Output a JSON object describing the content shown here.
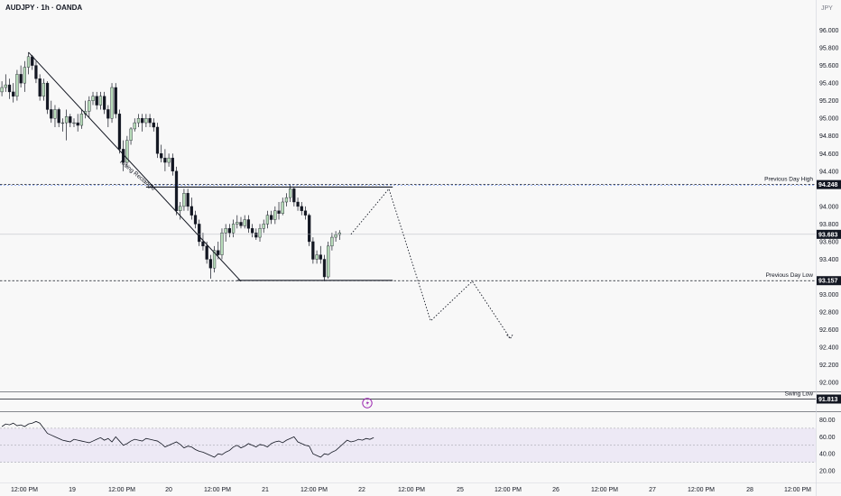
{
  "header": {
    "symbol": "AUDJPY · 1h · OANDA",
    "currency": "JPY"
  },
  "colors": {
    "up": "#ffffff",
    "down": "#131722",
    "wick": "#131722",
    "pattern_up": "#b7dbb9",
    "rsi_line": "#131722",
    "rsi_band": "#ede9f5",
    "rsi_low": "#f7b8b8",
    "grid": "#e0e3eb",
    "tag_bg": "#131722",
    "lightning": "#9c27b0"
  },
  "chart_data": [
    {
      "type": "candlestick",
      "y_ticks": [
        "96.000",
        "95.800",
        "95.600",
        "95.400",
        "95.200",
        "95.000",
        "94.800",
        "94.600",
        "94.400",
        "94.000",
        "93.800",
        "93.600",
        "93.400",
        "93.000",
        "92.800",
        "92.600",
        "92.400",
        "92.200",
        "92.000"
      ],
      "ylim": [
        91.9,
        96.2
      ],
      "x_ticks": [
        "12:00 PM",
        "19",
        "12:00 PM",
        "20",
        "12:00 PM",
        "21",
        "12:00 PM",
        "22",
        "12:00 PM",
        "25",
        "12:00 PM",
        "26",
        "12:00 PM",
        "27",
        "12:00 PM",
        "28",
        "12:00 PM"
      ],
      "bars_visible": 99,
      "bar_slots": 215,
      "candles": [
        [
          95.3,
          95.42,
          95.25,
          95.35
        ],
        [
          95.35,
          95.5,
          95.3,
          95.38
        ],
        [
          95.38,
          95.45,
          95.22,
          95.3
        ],
        [
          95.3,
          95.4,
          95.18,
          95.25
        ],
        [
          95.25,
          95.55,
          95.2,
          95.5
        ],
        [
          95.5,
          95.6,
          95.35,
          95.4
        ],
        [
          95.4,
          95.65,
          95.3,
          95.58
        ],
        [
          95.58,
          95.75,
          95.5,
          95.7
        ],
        [
          95.7,
          95.72,
          95.55,
          95.6
        ],
        [
          95.6,
          95.65,
          95.4,
          95.45
        ],
        [
          95.45,
          95.5,
          95.2,
          95.25
        ],
        [
          95.25,
          95.45,
          95.2,
          95.4
        ],
        [
          95.4,
          95.42,
          95.05,
          95.1
        ],
        [
          95.1,
          95.2,
          94.95,
          95.0
        ],
        [
          95.0,
          95.15,
          94.9,
          95.1
        ],
        [
          95.1,
          95.12,
          94.9,
          94.95
        ],
        [
          94.95,
          95.0,
          94.85,
          94.95
        ],
        [
          94.95,
          95.1,
          94.75,
          95.02
        ],
        [
          95.02,
          95.05,
          94.9,
          94.95
        ],
        [
          94.95,
          95.0,
          94.9,
          94.95
        ],
        [
          94.95,
          95.05,
          94.85,
          94.92
        ],
        [
          94.92,
          95.1,
          94.88,
          95.05
        ],
        [
          95.05,
          95.2,
          95.0,
          95.08
        ],
        [
          95.08,
          95.25,
          95.0,
          95.2
        ],
        [
          95.2,
          95.3,
          95.15,
          95.25
        ],
        [
          95.25,
          95.3,
          95.1,
          95.15
        ],
        [
          95.15,
          95.3,
          95.1,
          95.25
        ],
        [
          95.25,
          95.3,
          95.05,
          95.1
        ],
        [
          95.1,
          95.15,
          94.9,
          95.0
        ],
        [
          95.0,
          95.4,
          94.95,
          95.35
        ],
        [
          95.35,
          95.4,
          95.0,
          95.05
        ],
        [
          95.05,
          95.1,
          94.6,
          94.65
        ],
        [
          94.65,
          94.75,
          94.4,
          94.5
        ],
        [
          94.5,
          94.8,
          94.45,
          94.75
        ],
        [
          94.75,
          94.9,
          94.7,
          94.88
        ],
        [
          94.88,
          95.0,
          94.85,
          94.95
        ],
        [
          94.95,
          95.05,
          94.9,
          95.0
        ],
        [
          95.0,
          95.05,
          94.85,
          94.95
        ],
        [
          94.95,
          95.05,
          94.9,
          95.0
        ],
        [
          95.0,
          95.05,
          94.9,
          94.95
        ],
        [
          94.95,
          95.0,
          94.85,
          94.9
        ],
        [
          94.9,
          94.95,
          94.55,
          94.6
        ],
        [
          94.6,
          94.7,
          94.5,
          94.55
        ],
        [
          94.55,
          94.65,
          94.4,
          94.5
        ],
        [
          94.5,
          94.6,
          94.45,
          94.55
        ],
        [
          94.55,
          94.6,
          94.35,
          94.4
        ],
        [
          94.4,
          94.45,
          93.9,
          93.95
        ],
        [
          93.95,
          94.05,
          93.85,
          94.0
        ],
        [
          94.0,
          94.2,
          93.95,
          94.15
        ],
        [
          94.15,
          94.2,
          93.95,
          94.0
        ],
        [
          94.0,
          94.1,
          93.85,
          93.9
        ],
        [
          93.9,
          93.95,
          93.75,
          93.8
        ],
        [
          93.8,
          93.85,
          93.55,
          93.6
        ],
        [
          93.6,
          93.7,
          93.5,
          93.55
        ],
        [
          93.55,
          93.6,
          93.35,
          93.4
        ],
        [
          93.4,
          93.45,
          93.18,
          93.3
        ],
        [
          93.3,
          93.55,
          93.25,
          93.5
        ],
        [
          93.5,
          93.6,
          93.4,
          93.45
        ],
        [
          93.45,
          93.75,
          93.4,
          93.7
        ],
        [
          93.7,
          93.8,
          93.6,
          93.75
        ],
        [
          93.75,
          93.8,
          93.65,
          93.7
        ],
        [
          93.7,
          93.85,
          93.65,
          93.8
        ],
        [
          93.8,
          93.9,
          93.75,
          93.82
        ],
        [
          93.82,
          93.88,
          93.75,
          93.78
        ],
        [
          93.78,
          93.9,
          93.75,
          93.85
        ],
        [
          93.85,
          93.9,
          93.7,
          93.75
        ],
        [
          93.75,
          93.8,
          93.65,
          93.7
        ],
        [
          93.7,
          93.75,
          93.62,
          93.65
        ],
        [
          93.65,
          93.8,
          93.6,
          93.75
        ],
        [
          93.75,
          93.85,
          93.7,
          93.8
        ],
        [
          93.8,
          93.95,
          93.75,
          93.9
        ],
        [
          93.9,
          93.95,
          93.8,
          93.85
        ],
        [
          93.85,
          94.0,
          93.8,
          93.95
        ],
        [
          93.95,
          94.05,
          93.85,
          93.92
        ],
        [
          93.92,
          94.1,
          93.9,
          94.05
        ],
        [
          94.05,
          94.15,
          94.0,
          94.1
        ],
        [
          94.1,
          94.25,
          94.05,
          94.2
        ],
        [
          94.2,
          94.22,
          94.0,
          94.05
        ],
        [
          94.05,
          94.1,
          93.95,
          94.0
        ],
        [
          94.0,
          94.05,
          93.9,
          93.95
        ],
        [
          93.95,
          94.0,
          93.85,
          93.9
        ],
        [
          93.9,
          93.92,
          93.55,
          93.6
        ],
        [
          93.6,
          93.65,
          93.35,
          93.4
        ],
        [
          93.4,
          93.5,
          93.35,
          93.45
        ],
        [
          93.45,
          93.55,
          93.35,
          93.4
        ],
        [
          93.4,
          93.45,
          93.15,
          93.2
        ],
        [
          93.2,
          93.6,
          93.18,
          93.55
        ],
        [
          93.55,
          93.7,
          93.5,
          93.65
        ],
        [
          93.65,
          93.72,
          93.6,
          93.68
        ],
        [
          93.68,
          93.73,
          93.62,
          93.7
        ]
      ],
      "levels": [
        {
          "label": "Previous Day High",
          "value": 94.248,
          "tag": "94.248"
        },
        {
          "label": "Previous Day Low",
          "value": 93.157,
          "tag": "93.157"
        },
        {
          "label": "Swing Low",
          "value": 91.813,
          "tag": "91.813"
        }
      ],
      "current_price": {
        "value": 93.683,
        "tag": "93.683"
      },
      "annotations": {
        "pattern_label": "Rising Rectangle"
      },
      "projection": [
        [
          92,
          93.683
        ],
        [
          102,
          94.2
        ],
        [
          113,
          92.7
        ],
        [
          124,
          93.15
        ],
        [
          134,
          92.5
        ]
      ],
      "trendline": [
        [
          7,
          95.75
        ],
        [
          63,
          93.15
        ]
      ],
      "rect_top": 94.22,
      "rect_bottom": 93.16,
      "rect_x": [
        39,
        103
      ]
    },
    {
      "type": "line",
      "title": "",
      "y_ticks": [
        "80.00",
        "60.00",
        "40.00",
        "20.00"
      ],
      "ylim": [
        18,
        90
      ],
      "band": [
        30,
        70
      ],
      "values": [
        72,
        75,
        74,
        76,
        73,
        74,
        72,
        75,
        76,
        78,
        76,
        70,
        64,
        62,
        60,
        58,
        56,
        55,
        54,
        57,
        56,
        55,
        54,
        53,
        55,
        57,
        59,
        56,
        58,
        54,
        60,
        55,
        50,
        52,
        55,
        57,
        56,
        55,
        58,
        57,
        56,
        55,
        52,
        48,
        50,
        52,
        54,
        51,
        47,
        49,
        48,
        45,
        43,
        42,
        40,
        38,
        36,
        40,
        39,
        42,
        44,
        48,
        50,
        47,
        49,
        52,
        50,
        48,
        51,
        50,
        48,
        52,
        54,
        55,
        53,
        56,
        58,
        60,
        54,
        52,
        50,
        49,
        40,
        38,
        36,
        40,
        39,
        42,
        44,
        48,
        52,
        56,
        54,
        55,
        57,
        56,
        58,
        57,
        59
      ]
    }
  ]
}
